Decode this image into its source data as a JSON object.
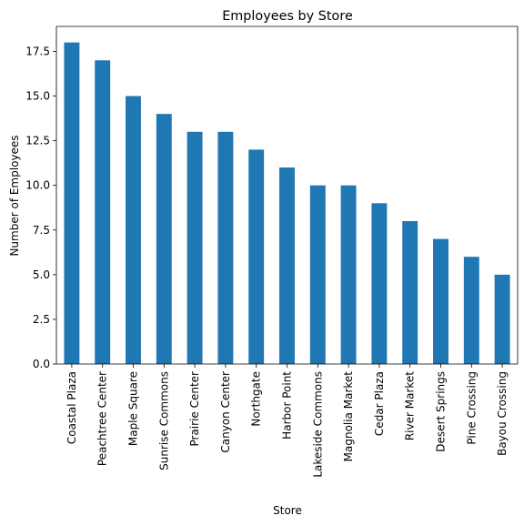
{
  "chart_data": {
    "type": "bar",
    "title": "Employees by Store",
    "x_label": "Store",
    "y_label": "Number of Employees",
    "categories": [
      "Coastal Plaza",
      "Peachtree Center",
      "Maple Square",
      "Sunrise Commons",
      "Prairie Center",
      "Canyon Center",
      "Northgate",
      "Harbor Point",
      "Lakeside Commons",
      "Magnolia Market",
      "Cedar Plaza",
      "River Market",
      "Desert Springs",
      "Pine Crossing",
      "Bayou Crossing"
    ],
    "values": [
      18,
      17,
      15,
      14,
      13,
      13,
      12,
      11,
      10,
      10,
      9,
      8,
      7,
      6,
      5
    ],
    "color": "#1f77b4",
    "ylim": [
      0,
      18.9
    ],
    "yticks": [
      {
        "value": 0,
        "label": "0.0"
      },
      2.5,
      {
        "value": 5,
        "label": "5.0"
      },
      7.5,
      {
        "value": 10,
        "label": "10.0"
      },
      12.5,
      {
        "value": 15,
        "label": "15.0"
      },
      17.5
    ],
    "grid": false
  }
}
